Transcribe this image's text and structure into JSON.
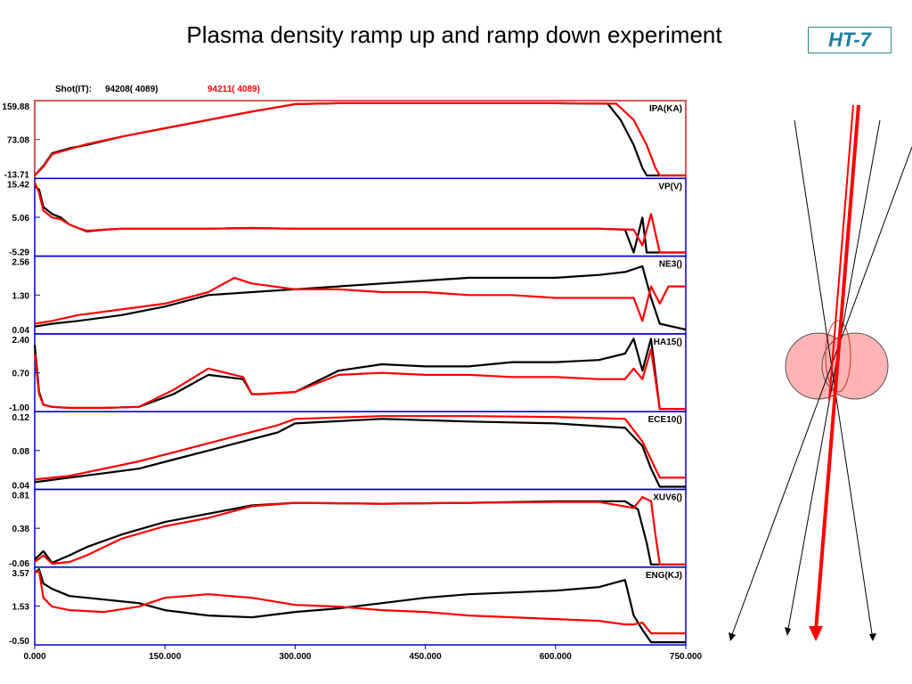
{
  "title": "Plasma density ramp up and ramp down experiment",
  "logo": "HT-7",
  "colors": {
    "shot_a": "#000000",
    "shot_b": "#ff0000",
    "frame": "#0000cc",
    "frame_top": "#cc2222",
    "logo": "#1a7fa0"
  },
  "header": {
    "shot_label": "Shot(IT):",
    "shot_a": "94208( 4089)",
    "shot_b": "94211( 4089)"
  },
  "chart_data": {
    "type": "line",
    "x_ticks": [
      "0.000",
      "150.000",
      "300.000",
      "450.000",
      "600.000",
      "750.000"
    ],
    "xlim": [
      0,
      750
    ],
    "series_names": [
      "94208( 4089)",
      "94211( 4089)"
    ],
    "panels": [
      {
        "label": "IPA(KA)",
        "yticks": [
          "159.88",
          "73.08",
          "-13.71"
        ],
        "ylim": [
          -13.71,
          159.88
        ],
        "series": [
          {
            "name": "94208( 4089)",
            "x": [
              0,
              10,
              20,
              40,
              60,
              100,
              150,
              200,
              250,
              300,
              350,
              400,
              500,
              600,
              660,
              675,
              690,
              700,
              705,
              750
            ],
            "y": [
              -13,
              10,
              40,
              52,
              60,
              80,
              100,
              120,
              140,
              158,
              160,
              160,
              160,
              160,
              159,
              120,
              60,
              5,
              -13,
              -13
            ]
          },
          {
            "name": "94211( 4089)",
            "x": [
              0,
              10,
              20,
              40,
              60,
              100,
              150,
              200,
              250,
              300,
              350,
              400,
              500,
              600,
              670,
              690,
              705,
              715,
              720,
              750
            ],
            "y": [
              -13,
              8,
              38,
              50,
              62,
              80,
              100,
              120,
              140,
              158,
              160,
              160,
              160,
              160,
              159,
              120,
              60,
              5,
              -13,
              -13
            ]
          }
        ]
      },
      {
        "label": "VP(V)",
        "yticks": [
          "15.42",
          "5.06",
          "-5.29"
        ],
        "ylim": [
          -5.29,
          15.42
        ],
        "series": [
          {
            "name": "94208( 4089)",
            "x": [
              0,
              5,
              10,
              20,
              30,
              40,
              50,
              60,
              80,
              100,
              150,
              200,
              250,
              300,
              400,
              500,
              600,
              650,
              680,
              690,
              700,
              705,
              750
            ],
            "y": [
              14,
              13,
              8,
              6,
              5,
              3,
              2,
              1,
              1.5,
              1.8,
              1.8,
              1.8,
              2,
              1.8,
              1.8,
              1.8,
              1.8,
              1.8,
              1.5,
              -5,
              5,
              -5,
              -5
            ]
          },
          {
            "name": "94211( 4089)",
            "x": [
              0,
              5,
              10,
              20,
              30,
              40,
              50,
              60,
              80,
              100,
              150,
              200,
              250,
              300,
              400,
              500,
              600,
              650,
              690,
              700,
              710,
              720,
              750
            ],
            "y": [
              15,
              12,
              7,
              5,
              4.5,
              3,
              2,
              1.2,
              1.5,
              1.8,
              1.8,
              1.8,
              2,
              1.8,
              1.8,
              1.8,
              1.8,
              1.8,
              1.5,
              -3,
              6,
              -5,
              -5
            ]
          }
        ]
      },
      {
        "label": "NE3()",
        "yticks": [
          "2.56",
          "1.30",
          "0.04"
        ],
        "ylim": [
          0.04,
          2.56
        ],
        "series": [
          {
            "name": "94208( 4089)",
            "x": [
              0,
              20,
              50,
              100,
              150,
              200,
              250,
              300,
              350,
              400,
              450,
              500,
              550,
              600,
              650,
              680,
              700,
              710,
              720,
              750
            ],
            "y": [
              0.2,
              0.3,
              0.4,
              0.6,
              0.9,
              1.3,
              1.4,
              1.5,
              1.6,
              1.7,
              1.8,
              1.9,
              1.9,
              1.9,
              2.0,
              2.1,
              2.3,
              1.2,
              0.3,
              0.1
            ]
          },
          {
            "name": "94211( 4089)",
            "x": [
              0,
              20,
              50,
              100,
              150,
              200,
              230,
              250,
              300,
              350,
              400,
              450,
              500,
              550,
              600,
              650,
              690,
              700,
              710,
              720,
              730,
              750
            ],
            "y": [
              0.3,
              0.4,
              0.6,
              0.8,
              1.0,
              1.4,
              1.9,
              1.7,
              1.5,
              1.5,
              1.4,
              1.4,
              1.3,
              1.3,
              1.2,
              1.2,
              1.2,
              0.4,
              1.6,
              1.0,
              1.6,
              1.6
            ]
          }
        ]
      },
      {
        "label": "HA15()",
        "yticks": [
          "2.40",
          "0.70",
          "-1.00"
        ],
        "ylim": [
          -1.0,
          2.4
        ],
        "series": [
          {
            "name": "94208( 4089)",
            "x": [
              0,
              5,
              10,
              20,
              40,
              80,
              120,
              160,
              200,
              240,
              250,
              260,
              300,
              350,
              400,
              450,
              500,
              550,
              600,
              650,
              680,
              690,
              700,
              710,
              720,
              750
            ],
            "y": [
              2.0,
              -0.2,
              -0.8,
              -0.9,
              -0.95,
              -0.95,
              -0.9,
              -0.3,
              0.6,
              0.4,
              -0.3,
              -0.3,
              -0.2,
              0.8,
              1.1,
              1.0,
              1.0,
              1.2,
              1.2,
              1.3,
              1.6,
              2.3,
              0.8,
              2.3,
              -1.0,
              -1.0
            ]
          },
          {
            "name": "94211( 4089)",
            "x": [
              0,
              5,
              10,
              20,
              40,
              80,
              120,
              160,
              200,
              240,
              250,
              260,
              300,
              350,
              400,
              450,
              500,
              550,
              600,
              650,
              680,
              690,
              700,
              710,
              720,
              750
            ],
            "y": [
              1.6,
              -0.3,
              -0.8,
              -0.9,
              -0.95,
              -0.95,
              -0.9,
              -0.1,
              0.9,
              0.5,
              -0.3,
              -0.3,
              -0.2,
              0.6,
              0.7,
              0.6,
              0.6,
              0.5,
              0.5,
              0.4,
              0.4,
              0.9,
              0.4,
              1.8,
              -1.0,
              -1.0
            ]
          }
        ]
      },
      {
        "label": "ECE10()",
        "yticks": [
          "0.12",
          "0.08",
          "0.04"
        ],
        "ylim": [
          0.04,
          0.12
        ],
        "series": [
          {
            "name": "94208( 4089)",
            "x": [
              0,
              40,
              80,
              120,
              160,
              200,
              240,
              280,
              300,
              400,
              500,
              600,
              680,
              700,
              710,
              720,
              750
            ],
            "y": [
              0.045,
              0.05,
              0.055,
              0.06,
              0.07,
              0.08,
              0.09,
              0.1,
              0.11,
              0.115,
              0.112,
              0.11,
              0.105,
              0.085,
              0.06,
              0.04,
              0.04
            ]
          },
          {
            "name": "94211( 4089)",
            "x": [
              0,
              40,
              80,
              120,
              160,
              200,
              240,
              280,
              300,
              400,
              500,
              600,
              680,
              700,
              710,
              720,
              750
            ],
            "y": [
              0.048,
              0.052,
              0.06,
              0.068,
              0.078,
              0.088,
              0.098,
              0.108,
              0.115,
              0.118,
              0.118,
              0.117,
              0.115,
              0.09,
              0.07,
              0.05,
              0.05
            ]
          }
        ]
      },
      {
        "label": "XUV6()",
        "yticks": [
          "0.81",
          "0.38",
          "-0.06"
        ],
        "ylim": [
          -0.06,
          0.81
        ],
        "series": [
          {
            "name": "94208( 4089)",
            "x": [
              0,
              10,
              20,
              40,
              60,
              100,
              150,
              200,
              250,
              300,
              400,
              500,
              600,
              650,
              680,
              695,
              705,
              710,
              720,
              750
            ],
            "y": [
              0.0,
              0.1,
              -0.04,
              0.05,
              0.15,
              0.3,
              0.45,
              0.55,
              0.65,
              0.68,
              0.67,
              0.68,
              0.7,
              0.7,
              0.7,
              0.6,
              0.2,
              -0.06,
              -0.06,
              -0.06
            ]
          },
          {
            "name": "94211( 4089)",
            "x": [
              0,
              10,
              20,
              40,
              60,
              100,
              150,
              200,
              250,
              300,
              400,
              500,
              600,
              650,
              690,
              700,
              710,
              715,
              720,
              750
            ],
            "y": [
              -0.03,
              0.05,
              -0.05,
              -0.03,
              0.05,
              0.25,
              0.4,
              0.5,
              0.64,
              0.68,
              0.67,
              0.68,
              0.69,
              0.69,
              0.62,
              0.75,
              0.7,
              0.3,
              -0.06,
              -0.06
            ]
          }
        ]
      },
      {
        "label": "ENG(KJ)",
        "yticks": [
          "3.57",
          "1.53",
          "-0.50"
        ],
        "ylim": [
          -0.5,
          3.57
        ],
        "series": [
          {
            "name": "94208( 4089)",
            "x": [
              0,
              5,
              10,
              20,
              40,
              80,
              120,
              150,
              200,
              250,
              300,
              350,
              400,
              450,
              500,
              550,
              600,
              650,
              680,
              690,
              700,
              710,
              750
            ],
            "y": [
              3.4,
              3.6,
              2.8,
              2.5,
              2.1,
              1.9,
              1.7,
              1.3,
              1.0,
              0.9,
              1.2,
              1.4,
              1.7,
              2.0,
              2.2,
              2.3,
              2.4,
              2.6,
              3.0,
              1.0,
              0.2,
              -0.5,
              -0.5
            ]
          },
          {
            "name": "94211( 4089)",
            "x": [
              0,
              5,
              10,
              20,
              40,
              80,
              120,
              150,
              200,
              250,
              300,
              350,
              400,
              450,
              500,
              550,
              600,
              650,
              680,
              690,
              700,
              710,
              750
            ],
            "y": [
              3.4,
              3.5,
              2.0,
              1.5,
              1.3,
              1.2,
              1.5,
              2.0,
              2.2,
              2.0,
              1.6,
              1.5,
              1.3,
              1.2,
              1.0,
              0.9,
              0.8,
              0.7,
              0.5,
              0.5,
              0.6,
              0.0,
              0.0
            ]
          }
        ]
      }
    ]
  }
}
